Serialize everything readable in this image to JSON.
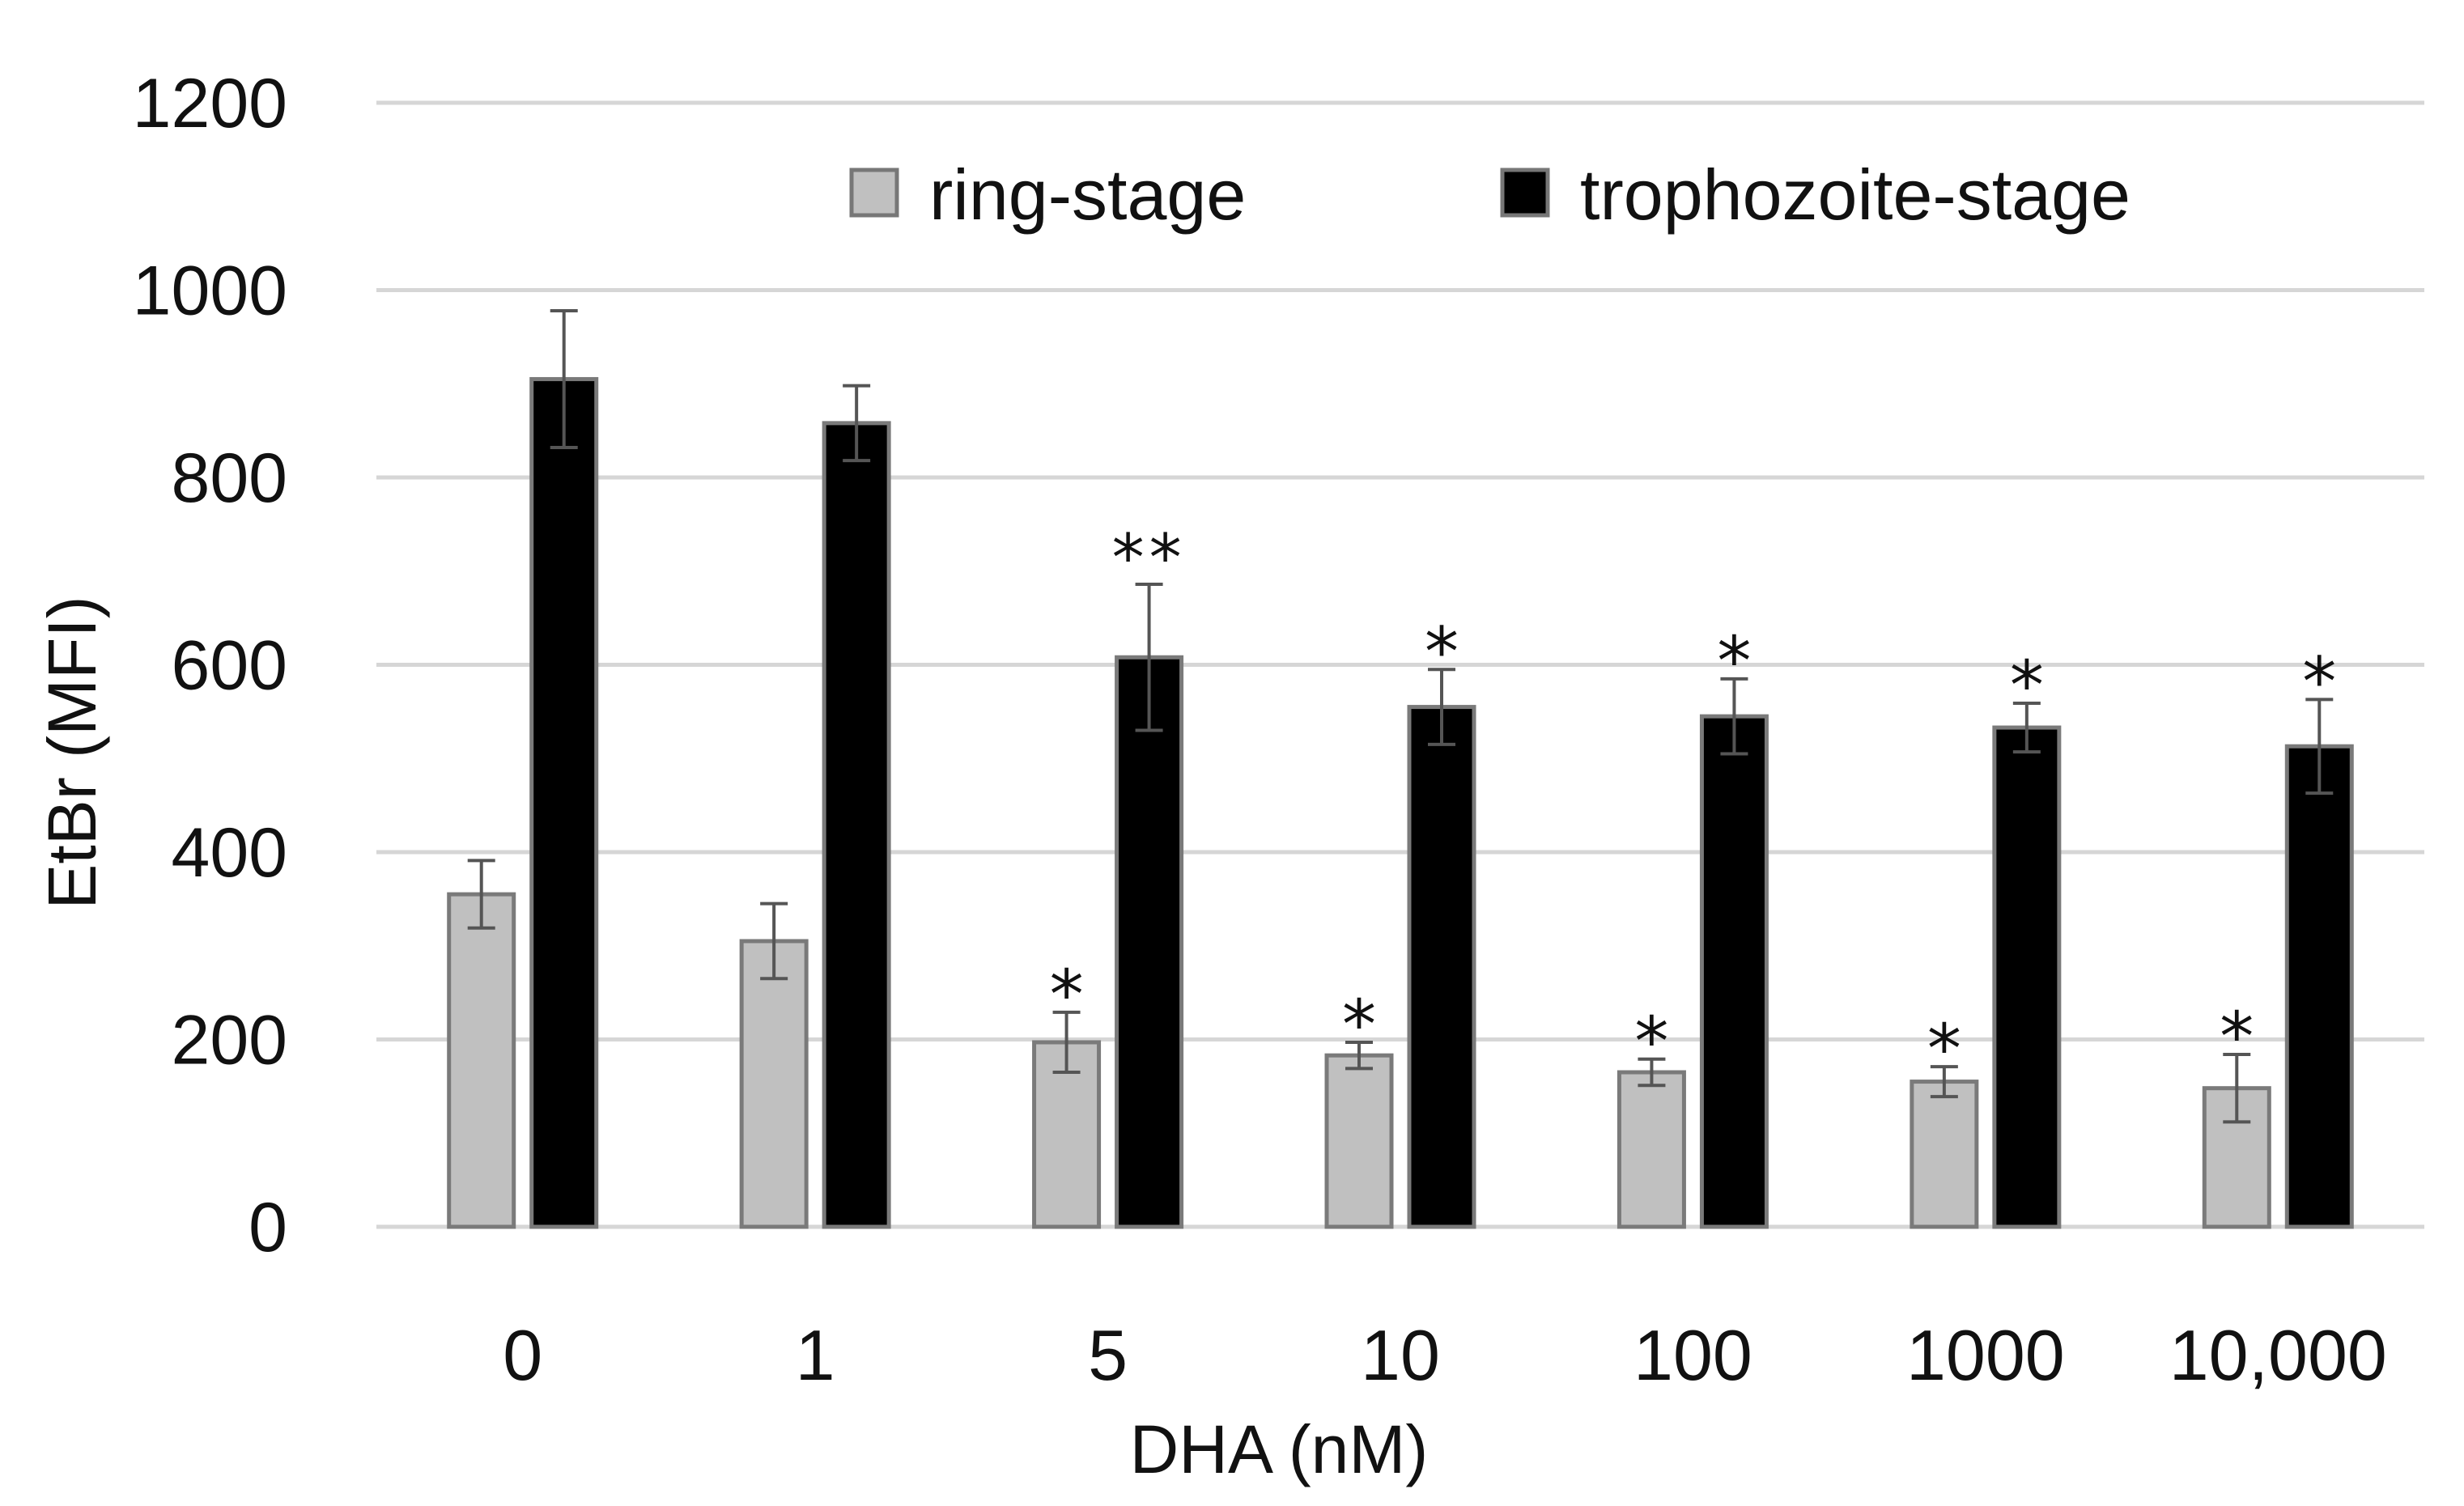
{
  "chart_data": {
    "type": "bar",
    "title": "",
    "xlabel": "DHA (nM)",
    "ylabel": "EtBr (MFI)",
    "ylim": [
      0,
      1200
    ],
    "yticks": [
      0,
      200,
      400,
      600,
      800,
      1000,
      1200
    ],
    "grid": true,
    "legend_position": "top-right",
    "categories": [
      "0",
      "1",
      "5",
      "10",
      "100",
      "1000",
      "10,000"
    ],
    "series": [
      {
        "name": "ring-stage",
        "color": "#c0c0c0",
        "values": [
          355,
          305,
          197,
          183,
          165,
          155,
          148
        ],
        "errors": [
          36,
          40,
          32,
          14,
          14,
          16,
          36
        ],
        "significance": [
          "",
          "",
          "*",
          "*",
          "*",
          "*",
          "*"
        ]
      },
      {
        "name": "trophozoite-stage",
        "color": "#000000",
        "values": [
          905,
          858,
          608,
          555,
          545,
          533,
          513
        ],
        "errors": [
          73,
          40,
          78,
          40,
          40,
          26,
          50
        ],
        "significance": [
          "",
          "",
          "**",
          "*",
          "*",
          "*",
          "*"
        ]
      }
    ]
  }
}
